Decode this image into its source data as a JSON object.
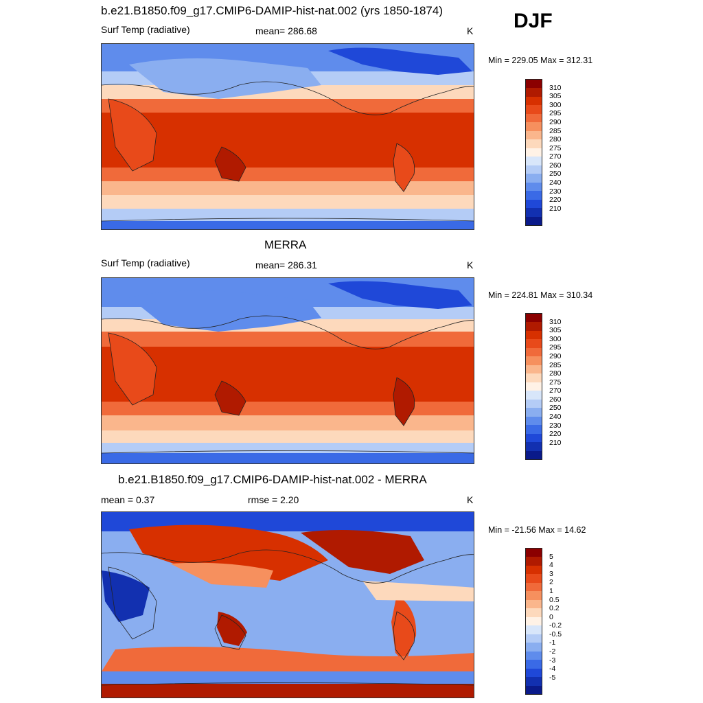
{
  "season": "DJF",
  "panels": [
    {
      "title": "b.e21.B1850.f09_g17.CMIP6-DAMIP-hist-nat.002 (yrs 1850-1874)",
      "left_label": "Surf Temp (radiative)",
      "center_label": "mean= 286.68",
      "units": "K",
      "minmax": "Min = 229.05 Max = 312.31",
      "legend_labels": [
        "310",
        "305",
        "300",
        "295",
        "290",
        "285",
        "280",
        "275",
        "270",
        "260",
        "250",
        "240",
        "230",
        "220",
        "210"
      ]
    },
    {
      "title": "MERRA",
      "left_label": "Surf Temp (radiative)",
      "center_label": "mean= 286.31",
      "units": "K",
      "minmax": "Min = 224.81 Max = 310.34",
      "legend_labels": [
        "310",
        "305",
        "300",
        "295",
        "290",
        "285",
        "280",
        "275",
        "270",
        "260",
        "250",
        "240",
        "230",
        "220",
        "210"
      ]
    },
    {
      "title": "b.e21.B1850.f09_g17.CMIP6-DAMIP-hist-nat.002 - MERRA",
      "left_label": "mean =   0.37",
      "center_label": "rmse =   2.20",
      "units": "K",
      "minmax": "Min = -21.56 Max =  14.62",
      "legend_labels": [
        "5",
        "4",
        "3",
        "2",
        "1",
        "0.5",
        "0.2",
        "0",
        "-0.2",
        "-0.5",
        "-1",
        "-2",
        "-3",
        "-4",
        "-5"
      ]
    }
  ],
  "colors": {
    "warm": [
      "#8b0000",
      "#b01a00",
      "#d73000",
      "#e84a1a",
      "#f06a3a",
      "#f6905e",
      "#fab68c",
      "#fdd9bc",
      "#fff2e6"
    ],
    "cool": [
      "#d8e6fa",
      "#b4ccf6",
      "#8aaef0",
      "#5f8cec",
      "#3a6ae6",
      "#1f48d8",
      "#1230b0",
      "#0a1a8a"
    ],
    "diff": [
      "#8b0000",
      "#b01a00",
      "#d73000",
      "#e84a1a",
      "#f06a3a",
      "#f6905e",
      "#fab68c",
      "#fdd9bc",
      "#fff2e6",
      "#d8e6fa",
      "#b4ccf6",
      "#8aaef0",
      "#5f8cec",
      "#3a6ae6",
      "#1f48d8",
      "#1230b0",
      "#0a1a8a"
    ]
  },
  "chart_data": [
    {
      "type": "heatmap",
      "title": "b.e21.B1850.f09_g17.CMIP6-DAMIP-hist-nat.002 (yrs 1850-1874)",
      "variable": "Surf Temp (radiative)",
      "units": "K",
      "season": "DJF",
      "mean": 286.68,
      "min": 229.05,
      "max": 312.31,
      "contour_levels": [
        210,
        220,
        230,
        240,
        250,
        260,
        270,
        275,
        280,
        285,
        290,
        295,
        300,
        305,
        310
      ]
    },
    {
      "type": "heatmap",
      "title": "MERRA",
      "variable": "Surf Temp (radiative)",
      "units": "K",
      "season": "DJF",
      "mean": 286.31,
      "min": 224.81,
      "max": 310.34,
      "contour_levels": [
        210,
        220,
        230,
        240,
        250,
        260,
        270,
        275,
        280,
        285,
        290,
        295,
        300,
        305,
        310
      ]
    },
    {
      "type": "heatmap",
      "title": "b.e21.B1850.f09_g17.CMIP6-DAMIP-hist-nat.002 - MERRA",
      "variable": "Surf Temp (radiative) difference",
      "units": "K",
      "season": "DJF",
      "mean": 0.37,
      "rmse": 2.2,
      "min": -21.56,
      "max": 14.62,
      "contour_levels": [
        -5,
        -4,
        -3,
        -2,
        -1,
        -0.5,
        -0.2,
        0,
        0.2,
        0.5,
        1,
        2,
        3,
        4,
        5
      ]
    }
  ]
}
